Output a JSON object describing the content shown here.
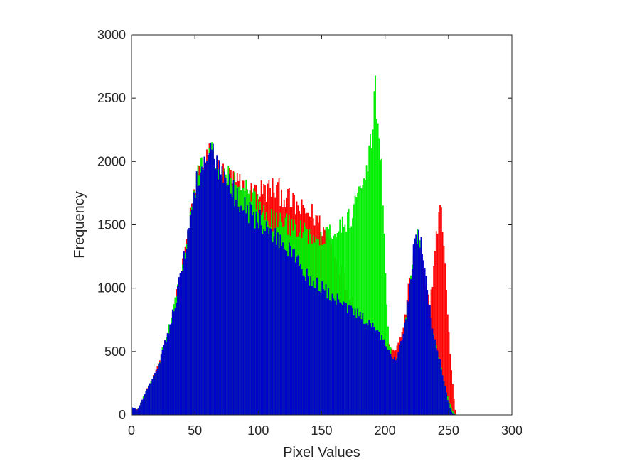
{
  "chart_data": {
    "type": "bar",
    "title": "",
    "xlabel": "Pixel Values",
    "ylabel": "Frequency",
    "xlim": [
      0,
      300
    ],
    "ylim": [
      0,
      3000
    ],
    "xticks": [
      "0",
      "50",
      "100",
      "150",
      "200",
      "250",
      "300"
    ],
    "yticks": [
      "0",
      "500",
      "1000",
      "1500",
      "2000",
      "2500",
      "3000"
    ],
    "grid": false,
    "legend": "none",
    "bin_width": 1,
    "series": [
      {
        "color": "#ff0000",
        "knots": [
          [
            0,
            60
          ],
          [
            5,
            40
          ],
          [
            10,
            150
          ],
          [
            20,
            350
          ],
          [
            30,
            700
          ],
          [
            40,
            1150
          ],
          [
            47,
            1600
          ],
          [
            52,
            1900
          ],
          [
            58,
            2000
          ],
          [
            63,
            2080
          ],
          [
            70,
            1930
          ],
          [
            80,
            1870
          ],
          [
            85,
            1830
          ],
          [
            90,
            1780
          ],
          [
            95,
            1760
          ],
          [
            100,
            1790
          ],
          [
            105,
            1780
          ],
          [
            110,
            1800
          ],
          [
            115,
            1790
          ],
          [
            120,
            1750
          ],
          [
            125,
            1700
          ],
          [
            130,
            1660
          ],
          [
            135,
            1620
          ],
          [
            140,
            1610
          ],
          [
            145,
            1580
          ],
          [
            150,
            1500
          ],
          [
            155,
            1420
          ],
          [
            160,
            1300
          ],
          [
            165,
            1150
          ],
          [
            170,
            1000
          ],
          [
            175,
            900
          ],
          [
            180,
            800
          ],
          [
            185,
            720
          ],
          [
            190,
            680
          ],
          [
            195,
            620
          ],
          [
            200,
            570
          ],
          [
            205,
            520
          ],
          [
            210,
            540
          ],
          [
            215,
            720
          ],
          [
            220,
            1100
          ],
          [
            225,
            1350
          ],
          [
            228,
            1300
          ],
          [
            232,
            1000
          ],
          [
            236,
            900
          ],
          [
            240,
            1350
          ],
          [
            243,
            1650
          ],
          [
            246,
            1500
          ],
          [
            249,
            900
          ],
          [
            252,
            400
          ],
          [
            255,
            80
          ],
          [
            256,
            0
          ]
        ]
      },
      {
        "color": "#00ee00",
        "knots": [
          [
            0,
            60
          ],
          [
            5,
            40
          ],
          [
            10,
            150
          ],
          [
            20,
            350
          ],
          [
            30,
            700
          ],
          [
            40,
            1150
          ],
          [
            47,
            1600
          ],
          [
            52,
            1900
          ],
          [
            58,
            2000
          ],
          [
            63,
            2080
          ],
          [
            70,
            1930
          ],
          [
            80,
            1860
          ],
          [
            85,
            1830
          ],
          [
            90,
            1780
          ],
          [
            95,
            1720
          ],
          [
            100,
            1680
          ],
          [
            105,
            1650
          ],
          [
            110,
            1560
          ],
          [
            115,
            1530
          ],
          [
            120,
            1540
          ],
          [
            130,
            1480
          ],
          [
            140,
            1440
          ],
          [
            150,
            1430
          ],
          [
            160,
            1470
          ],
          [
            170,
            1540
          ],
          [
            175,
            1620
          ],
          [
            180,
            1750
          ],
          [
            185,
            1900
          ],
          [
            188,
            2050
          ],
          [
            190,
            2300
          ],
          [
            192,
            2620
          ],
          [
            194,
            2450
          ],
          [
            196,
            2200
          ],
          [
            198,
            1900
          ],
          [
            200,
            1200
          ],
          [
            203,
            600
          ],
          [
            206,
            430
          ],
          [
            208,
            420
          ],
          [
            212,
            520
          ],
          [
            218,
            850
          ],
          [
            222,
            1200
          ],
          [
            225,
            1450
          ],
          [
            228,
            1300
          ],
          [
            232,
            900
          ],
          [
            236,
            680
          ],
          [
            240,
            580
          ],
          [
            245,
            350
          ],
          [
            250,
            120
          ],
          [
            254,
            20
          ],
          [
            256,
            0
          ]
        ]
      },
      {
        "color": "#0000cc",
        "knots": [
          [
            0,
            60
          ],
          [
            5,
            40
          ],
          [
            10,
            150
          ],
          [
            20,
            350
          ],
          [
            30,
            700
          ],
          [
            40,
            1150
          ],
          [
            47,
            1600
          ],
          [
            52,
            1900
          ],
          [
            58,
            2000
          ],
          [
            63,
            2080
          ],
          [
            70,
            1920
          ],
          [
            75,
            1860
          ],
          [
            80,
            1780
          ],
          [
            85,
            1710
          ],
          [
            90,
            1650
          ],
          [
            95,
            1600
          ],
          [
            100,
            1560
          ],
          [
            105,
            1490
          ],
          [
            110,
            1450
          ],
          [
            115,
            1410
          ],
          [
            120,
            1360
          ],
          [
            125,
            1300
          ],
          [
            130,
            1250
          ],
          [
            135,
            1160
          ],
          [
            140,
            1090
          ],
          [
            145,
            1050
          ],
          [
            150,
            1010
          ],
          [
            155,
            970
          ],
          [
            160,
            930
          ],
          [
            165,
            890
          ],
          [
            170,
            850
          ],
          [
            175,
            820
          ],
          [
            180,
            790
          ],
          [
            185,
            740
          ],
          [
            190,
            700
          ],
          [
            195,
            640
          ],
          [
            200,
            580
          ],
          [
            205,
            490
          ],
          [
            208,
            450
          ],
          [
            210,
            480
          ],
          [
            215,
            700
          ],
          [
            220,
            1050
          ],
          [
            224,
            1450
          ],
          [
            226,
            1420
          ],
          [
            229,
            1350
          ],
          [
            232,
            1100
          ],
          [
            236,
            800
          ],
          [
            240,
            580
          ],
          [
            245,
            350
          ],
          [
            250,
            100
          ],
          [
            253,
            10
          ],
          [
            256,
            0
          ]
        ]
      }
    ]
  }
}
